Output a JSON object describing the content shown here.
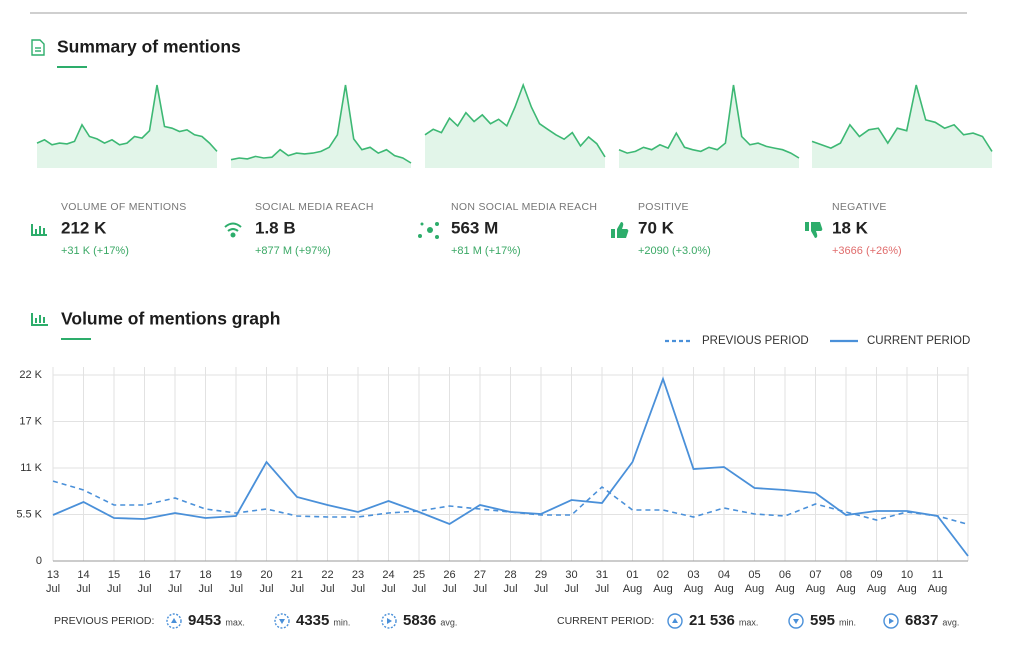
{
  "header": {
    "title": "Summary of mentions"
  },
  "summary": {
    "spark_color": "#3db874",
    "spark_fill": "#e2f5e9",
    "up_color": "#3aa865",
    "down_color": "#e06c6c",
    "cards": [
      {
        "label": "VOLUME OF MENTIONS",
        "value": "212 K",
        "change": "+31 K (+17%)",
        "trend": "up",
        "spark": [
          30,
          34,
          28,
          30,
          29,
          32,
          52,
          38,
          35,
          30,
          34,
          28,
          30,
          38,
          36,
          45,
          100,
          50,
          48,
          44,
          46,
          40,
          38,
          30,
          20
        ]
      },
      {
        "label": "SOCIAL MEDIA REACH",
        "value": "1.8 B",
        "change": "+877 M (+97%)",
        "trend": "up",
        "spark": [
          10,
          12,
          11,
          14,
          12,
          13,
          22,
          15,
          18,
          17,
          18,
          20,
          25,
          40,
          100,
          35,
          22,
          25,
          18,
          22,
          15,
          12,
          6
        ]
      },
      {
        "label": "NON SOCIAL MEDIA REACH",
        "value": "563 M",
        "change": "+81 M (+17%)",
        "trend": "up",
        "spark": [
          30,
          35,
          32,
          45,
          38,
          50,
          42,
          48,
          40,
          44,
          38,
          55,
          75,
          55,
          40,
          35,
          30,
          26,
          32,
          20,
          28,
          22,
          10
        ]
      },
      {
        "label": "POSITIVE",
        "value": "70 K",
        "change": "+2090 (+3.0%)",
        "trend": "up",
        "spark": [
          22,
          18,
          20,
          25,
          22,
          28,
          24,
          42,
          25,
          22,
          20,
          25,
          22,
          30,
          100,
          38,
          28,
          30,
          26,
          24,
          22,
          18,
          12
        ]
      },
      {
        "label": "NEGATIVE",
        "value": "18 K",
        "change": "+3666 (+26%)",
        "trend": "down",
        "spark": [
          32,
          28,
          24,
          30,
          52,
          38,
          46,
          48,
          30,
          48,
          45,
          100,
          58,
          55,
          48,
          52,
          40,
          42,
          38,
          20
        ]
      }
    ]
  },
  "chart_data": {
    "type": "line",
    "title": "Volume of mentions graph",
    "categories": [
      [
        "13",
        "Jul"
      ],
      [
        "14",
        "Jul"
      ],
      [
        "15",
        "Jul"
      ],
      [
        "16",
        "Jul"
      ],
      [
        "17",
        "Jul"
      ],
      [
        "18",
        "Jul"
      ],
      [
        "19",
        "Jul"
      ],
      [
        "20",
        "Jul"
      ],
      [
        "21",
        "Jul"
      ],
      [
        "22",
        "Jul"
      ],
      [
        "23",
        "Jul"
      ],
      [
        "24",
        "Jul"
      ],
      [
        "25",
        "Jul"
      ],
      [
        "26",
        "Jul"
      ],
      [
        "27",
        "Jul"
      ],
      [
        "28",
        "Jul"
      ],
      [
        "29",
        "Jul"
      ],
      [
        "30",
        "Jul"
      ],
      [
        "31",
        "Jul"
      ],
      [
        "01",
        "Aug"
      ],
      [
        "02",
        "Aug"
      ],
      [
        "03",
        "Aug"
      ],
      [
        "04",
        "Aug"
      ],
      [
        "05",
        "Aug"
      ],
      [
        "06",
        "Aug"
      ],
      [
        "07",
        "Aug"
      ],
      [
        "08",
        "Aug"
      ],
      [
        "09",
        "Aug"
      ],
      [
        "10",
        "Aug"
      ],
      [
        "11",
        "Aug"
      ],
      null
    ],
    "series": [
      {
        "name": "PREVIOUS PERIOD",
        "color": "#4a90d9",
        "dashed": true,
        "values": [
          9453,
          8400,
          6620,
          6620,
          7450,
          6150,
          5680,
          6150,
          5320,
          5200,
          5200,
          5680,
          5910,
          6500,
          6150,
          5800,
          5440,
          5440,
          8750,
          6030,
          6030,
          5200,
          6270,
          5560,
          5320,
          6740,
          5800,
          4850,
          5800,
          5320,
          4335
        ]
      },
      {
        "name": "CURRENT PERIOD",
        "color": "#4a90d9",
        "dashed": false,
        "values": [
          5440,
          6980,
          5090,
          4970,
          5680,
          5090,
          5320,
          11710,
          7570,
          6620,
          5800,
          7100,
          5800,
          4380,
          6620,
          5800,
          5560,
          7210,
          6860,
          11710,
          21536,
          10880,
          11120,
          8630,
          8400,
          8040,
          5440,
          5910,
          5910,
          5320,
          595
        ]
      }
    ],
    "ylim": [
      0,
      22000
    ],
    "yticks": [
      0,
      {
        "value": 5500,
        "label": "5.5 K"
      },
      {
        "value": 11000,
        "label": "11 K"
      },
      {
        "value": 16500,
        "label": "17 K"
      },
      {
        "value": 22000,
        "label": "22 K"
      }
    ],
    "grid": true,
    "legend": "top-right"
  },
  "footer": {
    "periods": [
      {
        "label": "PREVIOUS PERIOD:",
        "stats": [
          {
            "value": "9453",
            "unit": "max."
          },
          {
            "value": "4335",
            "unit": "min."
          },
          {
            "value": "5836",
            "unit": "avg."
          }
        ]
      },
      {
        "label": "CURRENT PERIOD:",
        "stats": [
          {
            "value": "21 536",
            "unit": "max."
          },
          {
            "value": "595",
            "unit": "min."
          },
          {
            "value": "6837",
            "unit": "avg."
          }
        ]
      }
    ]
  }
}
